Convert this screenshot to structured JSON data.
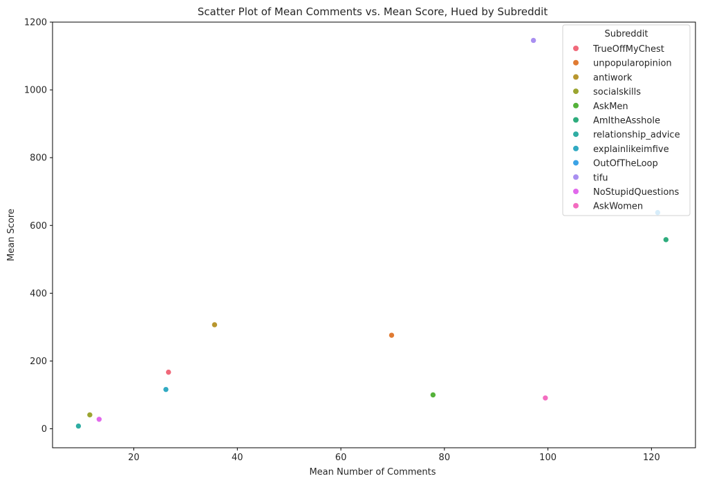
{
  "chart_data": {
    "type": "scatter",
    "title": "Scatter Plot of Mean Comments vs. Mean Score, Hued by Subreddit",
    "xlabel": "Mean Number of Comments",
    "ylabel": "Mean Score",
    "xlim": [
      4.3,
      128.5
    ],
    "ylim": [
      -56,
      1200
    ],
    "xticks": [
      20,
      40,
      60,
      80,
      100,
      120
    ],
    "yticks": [
      0,
      200,
      400,
      600,
      800,
      1000,
      1200
    ],
    "legend": {
      "title": "Subreddit",
      "position": "top-right"
    },
    "series": [
      {
        "name": "TrueOffMyChest",
        "color": "#f0697a",
        "points": [
          {
            "x": 26.7,
            "y": 167
          }
        ]
      },
      {
        "name": "unpopularopinion",
        "color": "#e07b33",
        "points": [
          {
            "x": 69.8,
            "y": 276
          }
        ]
      },
      {
        "name": "antiwork",
        "color": "#b8962e",
        "points": [
          {
            "x": 35.6,
            "y": 307
          }
        ]
      },
      {
        "name": "socialskills",
        "color": "#9ba530",
        "points": [
          {
            "x": 11.5,
            "y": 41
          }
        ]
      },
      {
        "name": "AskMen",
        "color": "#54b23a",
        "points": [
          {
            "x": 77.8,
            "y": 100
          }
        ]
      },
      {
        "name": "AmItheAsshole",
        "color": "#2eac7d",
        "points": [
          {
            "x": 122.8,
            "y": 558
          }
        ]
      },
      {
        "name": "relationship_advice",
        "color": "#2fada3",
        "points": [
          {
            "x": 9.3,
            "y": 8
          }
        ]
      },
      {
        "name": "explainlikeimfive",
        "color": "#31aac2",
        "points": [
          {
            "x": 26.2,
            "y": 116
          }
        ]
      },
      {
        "name": "OutOfTheLoop",
        "color": "#3ba3e6",
        "points": [
          {
            "x": 121.2,
            "y": 638
          }
        ]
      },
      {
        "name": "tifu",
        "color": "#a98ff0",
        "points": [
          {
            "x": 97.2,
            "y": 1146
          }
        ]
      },
      {
        "name": "NoStupidQuestions",
        "color": "#e169ec",
        "points": [
          {
            "x": 13.3,
            "y": 28
          }
        ]
      },
      {
        "name": "AskWomen",
        "color": "#f36cc0",
        "points": [
          {
            "x": 99.5,
            "y": 91
          }
        ]
      }
    ]
  }
}
